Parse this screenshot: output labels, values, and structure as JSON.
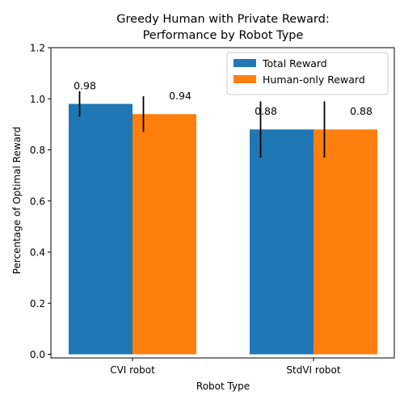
{
  "chart_data": {
    "type": "bar",
    "title_lines": [
      "Greedy Human with Private Reward:",
      "Performance by Robot Type"
    ],
    "xlabel": "Robot Type",
    "ylabel": "Percentage of Optimal Reward",
    "categories": [
      "CVI robot",
      "StdVI robot"
    ],
    "series": [
      {
        "name": "Total Reward",
        "color": "#1f77b4",
        "values": [
          0.98,
          0.88
        ],
        "errors": [
          0.05,
          0.11
        ],
        "labels": [
          "0.98",
          "0.88"
        ]
      },
      {
        "name": "Human-only Reward",
        "color": "#ff7f0e",
        "values": [
          0.94,
          0.88
        ],
        "errors": [
          0.07,
          0.11
        ],
        "labels": [
          "0.94",
          "0.88"
        ]
      }
    ],
    "ylim": [
      0,
      1.2
    ],
    "yticks": [
      0.0,
      0.2,
      0.4,
      0.6,
      0.8,
      1.0,
      1.2
    ],
    "ytick_labels": [
      "0.0",
      "0.2",
      "0.4",
      "0.6",
      "0.8",
      "1.0",
      "1.2"
    ],
    "legend": "top-right",
    "grid": false
  }
}
